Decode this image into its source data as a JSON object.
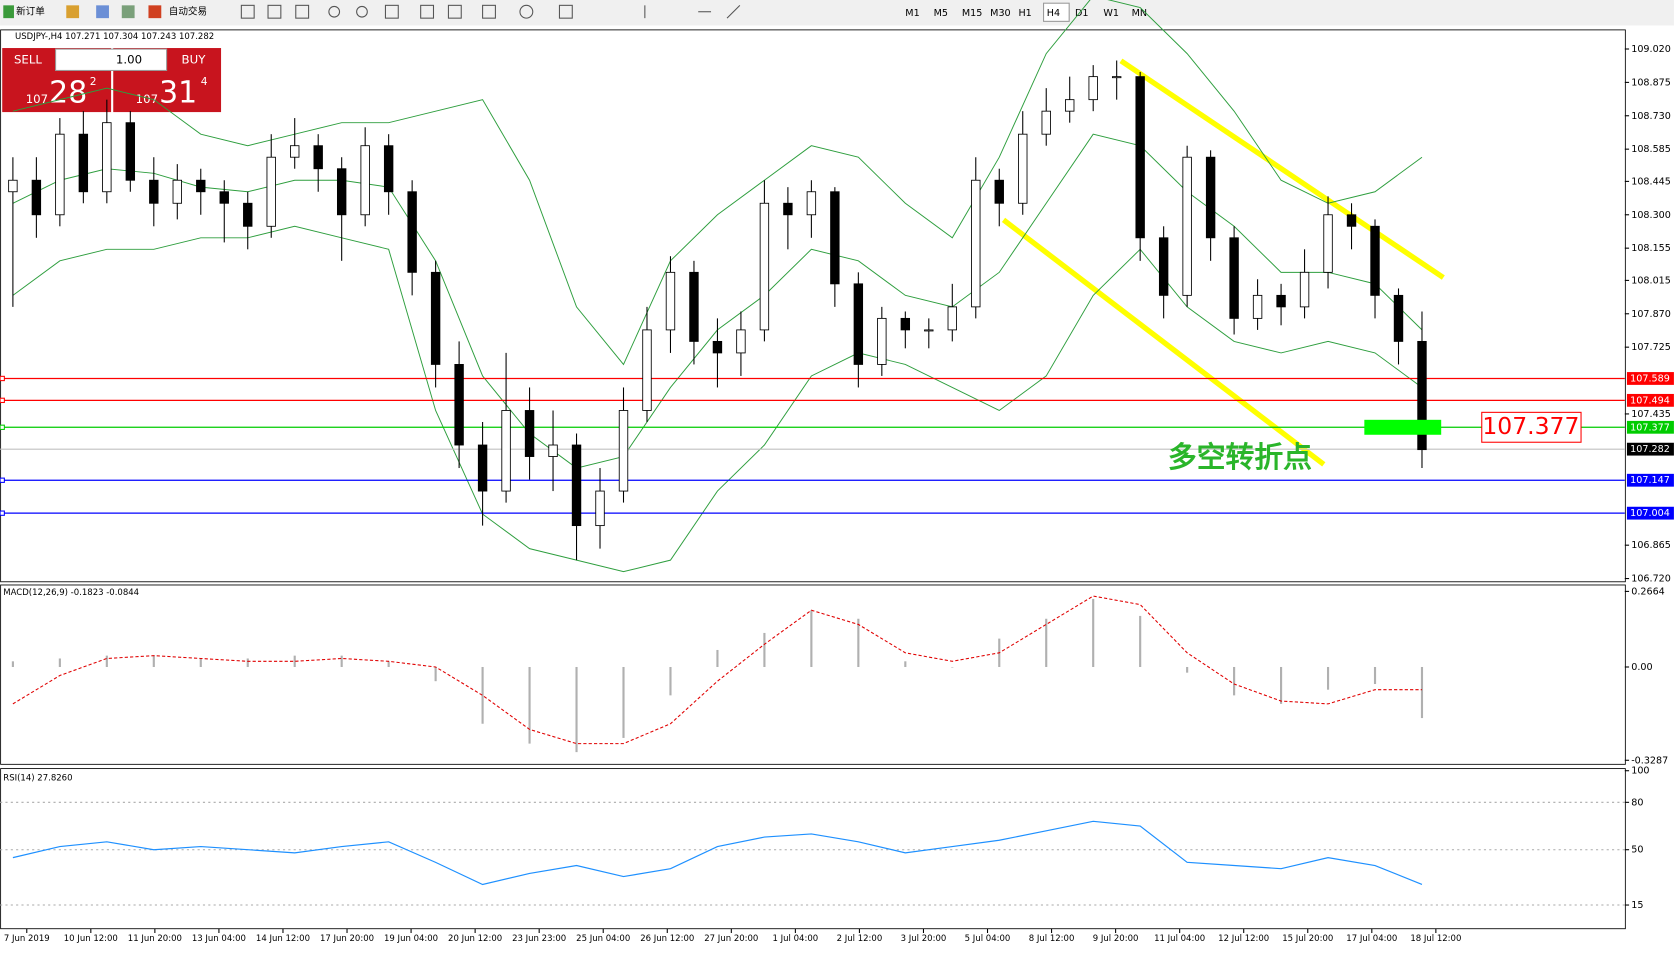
{
  "toolbar": {
    "new_order": "新订单",
    "auto_trading": "自动交易",
    "timeframes": [
      "M1",
      "M5",
      "M15",
      "M30",
      "H1",
      "H4",
      "D1",
      "W1",
      "MN"
    ]
  },
  "trade_panel": {
    "sell": "SELL",
    "buy": "BUY",
    "lots": "1.00",
    "sell_big": "107",
    "sell_pips": "28",
    "sell_frac": "2",
    "buy_big": "107",
    "buy_pips": "31",
    "buy_frac": "4"
  },
  "chart_data": {
    "type": "candlestick",
    "header": "USDJPY-,H4 107.271 107.304 107.243 107.282",
    "open": [
      108.4,
      108.45,
      108.3,
      108.65,
      108.4,
      108.7,
      108.45,
      108.35,
      108.45,
      108.4,
      108.35,
      108.25,
      108.55,
      108.6,
      108.5,
      108.3,
      108.6,
      108.4,
      108.05,
      107.65,
      107.3,
      107.1,
      107.45,
      107.25,
      107.3,
      106.95,
      107.1,
      107.45,
      107.8,
      108.05,
      107.75,
      107.7,
      107.8,
      108.35,
      108.3,
      108.4,
      108.0,
      107.65,
      107.85,
      107.8,
      107.8,
      107.9,
      108.45,
      108.35,
      108.65,
      108.75,
      108.8,
      108.9,
      108.9,
      108.2,
      107.95,
      108.55,
      108.2,
      107.85,
      107.95,
      107.9,
      108.05,
      108.3,
      108.25,
      107.95,
      107.75
    ],
    "high": [
      108.55,
      108.55,
      108.72,
      108.75,
      108.8,
      108.75,
      108.55,
      108.52,
      108.5,
      108.45,
      108.4,
      108.65,
      108.72,
      108.65,
      108.55,
      108.68,
      108.65,
      108.45,
      108.1,
      107.75,
      107.4,
      107.7,
      107.55,
      107.45,
      107.35,
      107.2,
      107.55,
      107.9,
      108.12,
      108.1,
      107.85,
      107.88,
      108.45,
      108.42,
      108.45,
      108.42,
      108.05,
      107.9,
      107.88,
      107.85,
      108.0,
      108.55,
      108.5,
      108.75,
      108.85,
      108.9,
      108.95,
      108.97,
      108.92,
      108.25,
      108.6,
      108.58,
      108.25,
      108.02,
      108.0,
      108.15,
      108.38,
      108.35,
      108.28,
      107.98,
      107.88
    ],
    "low": [
      107.9,
      108.2,
      108.25,
      108.35,
      108.35,
      108.4,
      108.25,
      108.28,
      108.3,
      108.18,
      108.15,
      108.2,
      108.5,
      108.4,
      108.1,
      108.25,
      108.3,
      107.95,
      107.55,
      107.2,
      106.95,
      107.05,
      107.15,
      107.1,
      106.8,
      106.85,
      107.05,
      107.4,
      107.7,
      107.65,
      107.55,
      107.6,
      107.75,
      108.15,
      108.2,
      107.9,
      107.55,
      107.6,
      107.72,
      107.72,
      107.75,
      107.85,
      108.25,
      108.3,
      108.6,
      108.7,
      108.75,
      108.8,
      108.1,
      107.85,
      107.9,
      108.1,
      107.78,
      107.8,
      107.82,
      107.85,
      107.98,
      108.15,
      107.85,
      107.65,
      107.2
    ],
    "close": [
      108.45,
      108.3,
      108.65,
      108.4,
      108.7,
      108.45,
      108.35,
      108.45,
      108.4,
      108.35,
      108.25,
      108.55,
      108.6,
      108.5,
      108.3,
      108.6,
      108.4,
      108.05,
      107.65,
      107.3,
      107.1,
      107.45,
      107.25,
      107.3,
      106.95,
      107.1,
      107.45,
      107.8,
      108.05,
      107.75,
      107.7,
      107.8,
      108.35,
      108.3,
      108.4,
      108.0,
      107.65,
      107.85,
      107.8,
      107.8,
      107.9,
      108.45,
      108.35,
      108.65,
      108.75,
      108.8,
      108.9,
      108.9,
      108.2,
      107.95,
      108.55,
      108.2,
      107.85,
      107.95,
      107.9,
      108.05,
      108.3,
      108.25,
      107.95,
      107.75,
      107.28
    ],
    "band_color": "#2e9e3e",
    "bands": {
      "upper": [
        108.75,
        108.8,
        108.85,
        108.8,
        108.65,
        108.6,
        108.65,
        108.7,
        108.7,
        108.75,
        108.8,
        108.45,
        107.9,
        107.65,
        108.1,
        108.3,
        108.45,
        108.6,
        108.55,
        108.35,
        108.2,
        108.55,
        109.0,
        109.25,
        109.2,
        109.0,
        108.75,
        108.45,
        108.35,
        108.4,
        108.55
      ],
      "middle": [
        108.35,
        108.45,
        108.5,
        108.48,
        108.42,
        108.4,
        108.45,
        108.45,
        108.42,
        108.1,
        107.6,
        107.35,
        107.2,
        107.25,
        107.55,
        107.8,
        107.95,
        108.15,
        108.1,
        107.95,
        107.9,
        108.05,
        108.35,
        108.65,
        108.6,
        108.4,
        108.25,
        108.05,
        108.05,
        108.0,
        107.8
      ],
      "lower": [
        107.95,
        108.1,
        108.15,
        108.15,
        108.2,
        108.2,
        108.25,
        108.2,
        108.15,
        107.45,
        107.0,
        106.85,
        106.8,
        106.75,
        106.8,
        107.1,
        107.3,
        107.6,
        107.7,
        107.65,
        107.55,
        107.45,
        107.6,
        107.95,
        108.15,
        107.9,
        107.75,
        107.7,
        107.75,
        107.7,
        107.55
      ]
    },
    "ylim": [
      106.706,
      109.103
    ],
    "yticks": [
      {
        "value": 109.02,
        "label": "109.020"
      },
      108.875,
      {
        "value": 108.73,
        "label": "108.730"
      },
      108.585,
      108.445,
      {
        "value": 108.3,
        "label": "108.300"
      },
      108.155,
      108.015,
      {
        "value": 107.87,
        "label": "107.870"
      },
      107.725,
      107.435,
      106.865,
      {
        "value": 106.72,
        "label": "106.720"
      }
    ],
    "current_price": 107.282,
    "levels": [
      {
        "value": 107.589,
        "color": "#ff0000"
      },
      {
        "value": 107.494,
        "color": "#ff0000"
      },
      {
        "value": 107.377,
        "color": "#00cc00"
      },
      {
        "value": 107.147,
        "color": "#0000ff"
      },
      {
        "value": 107.004,
        "color": "#0000ff"
      }
    ],
    "annotation": "多空转折点",
    "time_labels": [
      "7 Jun 2019",
      "10 Jun 12:00",
      "11 Jun 20:00",
      "13 Jun 04:00",
      "14 Jun 12:00",
      "17 Jun 20:00",
      "19 Jun 04:00",
      "20 Jun 12:00",
      "23 Jun 23:00",
      "25 Jun 04:00",
      "26 Jun 12:00",
      "27 Jun 20:00",
      "1 Jul 04:00",
      "2 Jul 12:00",
      "3 Jul 20:00",
      "5 Jul 04:00",
      "8 Jul 12:00",
      "9 Jul 20:00",
      "11 Jul 04:00",
      "12 Jul 12:00",
      "15 Jul 20:00",
      "17 Jul 04:00",
      "18 Jul 12:00"
    ],
    "macd": {
      "header": "MACD(12,26,9) -0.1823 -0.0844",
      "ylim": [
        -0.343,
        0.289
      ],
      "yticks": [
        0.2664,
        {
          "value": 0,
          "label": "0.00"
        },
        -0.3287
      ],
      "histogram": [
        0.02,
        0.03,
        0.04,
        0.04,
        0.03,
        0.03,
        0.04,
        0.04,
        0.02,
        -0.05,
        -0.2,
        -0.27,
        -0.3,
        -0.25,
        -0.1,
        0.06,
        0.12,
        0.2,
        0.17,
        0.02,
        0.0,
        0.1,
        0.17,
        0.24,
        0.18,
        -0.02,
        -0.1,
        -0.13,
        -0.08,
        -0.06,
        -0.18
      ],
      "signal": [
        -0.13,
        -0.03,
        0.03,
        0.04,
        0.03,
        0.02,
        0.02,
        0.03,
        0.02,
        0.0,
        -0.1,
        -0.22,
        -0.27,
        -0.27,
        -0.2,
        -0.05,
        0.08,
        0.2,
        0.15,
        0.05,
        0.02,
        0.05,
        0.15,
        0.25,
        0.22,
        0.05,
        -0.06,
        -0.12,
        -0.13,
        -0.08,
        -0.08
      ]
    },
    "rsi": {
      "header": "RSI(14) 27.8260",
      "ylim": [
        0,
        100
      ],
      "yticks": [
        100,
        80,
        50,
        15
      ],
      "levels": [
        80,
        50,
        15
      ],
      "values": [
        45,
        52,
        55,
        50,
        52,
        50,
        48,
        52,
        55,
        42,
        28,
        35,
        40,
        33,
        38,
        52,
        58,
        60,
        55,
        48,
        52,
        56,
        62,
        68,
        65,
        42,
        40,
        38,
        45,
        40,
        28
      ]
    }
  }
}
